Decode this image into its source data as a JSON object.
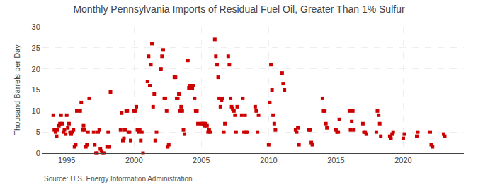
{
  "chart_data": {
    "type": "scatter",
    "title": "Monthly Pennsylvania Imports of Residual Fuel Oil, Greater Than 1% Sulfur",
    "ylabel": "Thousand Barrels per Day",
    "annotations": [
      "Source: U.S. Energy Information Administration"
    ],
    "color": "#cc0000",
    "marker": "square",
    "grid": true,
    "xlim": [
      1993.2,
      2024.5
    ],
    "ylim": [
      0,
      30
    ],
    "xticks": [
      1995,
      2000,
      2005,
      2010,
      2015,
      2020
    ],
    "yticks": [
      0,
      5,
      10,
      15,
      20,
      25,
      30
    ],
    "x": [
      1994.0,
      1994.08,
      1994.17,
      1994.25,
      1994.33,
      1994.42,
      1994.5,
      1994.58,
      1994.67,
      1994.75,
      1994.83,
      1994.92,
      1995.0,
      1995.08,
      1995.17,
      1995.25,
      1995.33,
      1995.42,
      1995.5,
      1995.58,
      1995.67,
      1995.75,
      1996.0,
      1996.08,
      1996.17,
      1996.25,
      1996.33,
      1996.42,
      1996.5,
      1996.58,
      1996.67,
      1997.0,
      1997.08,
      1997.17,
      1997.25,
      1997.33,
      1997.42,
      1997.5,
      1997.58,
      1997.67,
      1997.75,
      1998.0,
      1998.08,
      1998.17,
      1998.25,
      1999.0,
      1999.08,
      1999.17,
      1999.25,
      1999.33,
      1999.42,
      1999.5,
      1999.58,
      1999.67,
      1999.75,
      2000.0,
      2000.08,
      2000.17,
      2000.25,
      2000.33,
      2000.42,
      2000.5,
      2000.58,
      2000.67,
      2001.0,
      2001.08,
      2001.17,
      2001.25,
      2001.33,
      2001.42,
      2001.5,
      2001.58,
      2001.67,
      2002.0,
      2002.08,
      2002.17,
      2002.25,
      2002.33,
      2002.42,
      2002.5,
      2002.58,
      2003.0,
      2003.08,
      2003.17,
      2003.25,
      2003.33,
      2003.42,
      2003.5,
      2003.58,
      2003.67,
      2003.75,
      2004.0,
      2004.08,
      2004.17,
      2004.25,
      2004.33,
      2004.42,
      2004.5,
      2004.58,
      2004.67,
      2004.75,
      2005.0,
      2005.08,
      2005.17,
      2005.25,
      2005.33,
      2005.42,
      2005.5,
      2005.58,
      2005.67,
      2006.0,
      2006.08,
      2006.17,
      2006.25,
      2006.33,
      2006.42,
      2006.5,
      2006.58,
      2006.67,
      2006.75,
      2007.0,
      2007.08,
      2007.17,
      2007.25,
      2007.33,
      2007.42,
      2007.5,
      2007.58,
      2007.67,
      2008.0,
      2008.08,
      2008.17,
      2008.25,
      2008.33,
      2008.42,
      2009.0,
      2009.08,
      2009.17,
      2009.25,
      2010.0,
      2010.08,
      2010.17,
      2010.25,
      2010.33,
      2010.42,
      2010.5,
      2011.0,
      2011.08,
      2011.17,
      2012.0,
      2012.08,
      2012.17,
      2012.25,
      2013.0,
      2013.08,
      2013.17,
      2013.25,
      2014.0,
      2014.08,
      2014.17,
      2014.25,
      2014.33,
      2015.0,
      2015.08,
      2015.17,
      2015.25,
      2016.0,
      2016.08,
      2016.17,
      2016.25,
      2016.33,
      2017.0,
      2017.08,
      2017.17,
      2017.25,
      2018.0,
      2018.08,
      2018.17,
      2018.25,
      2018.33,
      2019.0,
      2019.08,
      2019.17,
      2019.25,
      2020.0,
      2020.08,
      2021.0,
      2021.08,
      2022.0,
      2022.08,
      2022.17,
      2023.0,
      2023.08
    ],
    "values": [
      9.0,
      5.5,
      5.0,
      4.0,
      5.5,
      6.5,
      7.0,
      9.0,
      7.0,
      5.0,
      5.5,
      4.5,
      9.0,
      6.0,
      7.0,
      5.0,
      4.5,
      5.0,
      5.5,
      1.5,
      2.0,
      10.0,
      10.0,
      12.0,
      5.5,
      6.5,
      5.5,
      1.5,
      2.0,
      5.0,
      13.0,
      5.0,
      2.0,
      0.0,
      0.0,
      5.0,
      5.5,
      1.0,
      0.5,
      0.0,
      0.0,
      1.5,
      5.0,
      1.5,
      14.5,
      5.5,
      9.5,
      3.0,
      3.5,
      5.5,
      10.0,
      10.0,
      5.0,
      5.0,
      3.0,
      10.0,
      10.0,
      11.0,
      5.5,
      5.0,
      5.5,
      3.0,
      5.0,
      0.0,
      17.0,
      23.0,
      16.0,
      21.0,
      26.0,
      11.0,
      14.0,
      3.0,
      5.0,
      20.0,
      23.0,
      24.5,
      13.0,
      13.0,
      10.0,
      1.5,
      2.0,
      18.0,
      18.0,
      13.0,
      13.0,
      14.0,
      10.0,
      11.0,
      10.0,
      5.5,
      4.5,
      22.0,
      15.5,
      16.0,
      15.5,
      15.5,
      16.0,
      13.0,
      10.0,
      10.0,
      7.0,
      7.0,
      7.0,
      7.0,
      6.5,
      7.0,
      6.5,
      5.0,
      5.5,
      5.0,
      27.0,
      23.0,
      21.0,
      18.0,
      13.0,
      11.0,
      12.5,
      13.0,
      5.0,
      7.0,
      23.0,
      21.0,
      13.0,
      11.0,
      10.5,
      10.0,
      9.0,
      5.0,
      11.0,
      9.0,
      13.0,
      5.0,
      9.0,
      5.0,
      5.0,
      11.0,
      10.0,
      5.0,
      9.0,
      2.0,
      12.0,
      21.0,
      15.0,
      9.0,
      7.0,
      5.5,
      19.0,
      16.5,
      15.0,
      5.5,
      5.0,
      6.0,
      2.0,
      5.5,
      5.5,
      2.5,
      2.0,
      13.0,
      10.0,
      10.0,
      7.0,
      6.0,
      5.5,
      5.0,
      5.0,
      8.0,
      10.0,
      5.5,
      7.5,
      10.0,
      5.5,
      7.0,
      5.0,
      5.0,
      4.5,
      5.0,
      10.0,
      9.0,
      7.0,
      4.0,
      4.0,
      3.5,
      4.5,
      5.0,
      3.5,
      4.5,
      4.0,
      5.0,
      5.0,
      2.0,
      1.5,
      4.5,
      4.0
    ]
  }
}
